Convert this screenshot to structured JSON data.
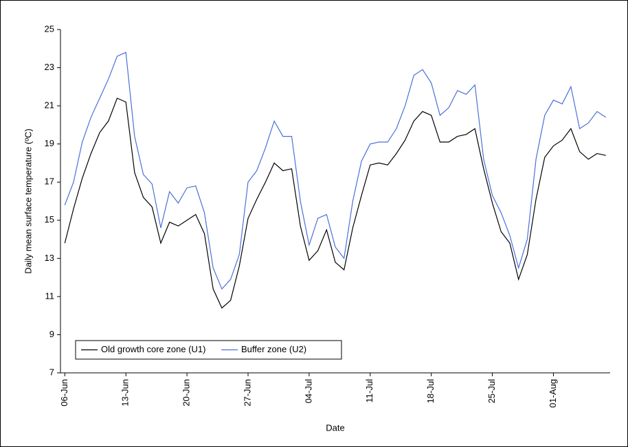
{
  "chart_data": {
    "type": "line",
    "ylabel": "Daily mean surface temperature (ºC)",
    "xlabel": "Date",
    "categories": [
      "06-Jun",
      null,
      null,
      null,
      null,
      null,
      null,
      "13-Jun",
      null,
      null,
      null,
      null,
      null,
      null,
      "20-Jun",
      null,
      null,
      null,
      null,
      null,
      null,
      "27-Jun",
      null,
      null,
      null,
      null,
      null,
      null,
      "04-Jul",
      null,
      null,
      null,
      null,
      null,
      null,
      "11-Jul",
      null,
      null,
      null,
      null,
      null,
      null,
      "18-Jul",
      null,
      null,
      null,
      null,
      null,
      null,
      "25-Jul",
      null,
      null,
      null,
      null,
      null,
      null,
      "01-Aug",
      null,
      null,
      null,
      null,
      null,
      null
    ],
    "series": [
      {
        "name": "Old growth core zone (U1)",
        "color": "#000000",
        "values": [
          13.8,
          15.6,
          17.2,
          18.5,
          19.6,
          20.2,
          21.4,
          21.2,
          17.5,
          16.2,
          15.7,
          13.8,
          14.9,
          14.7,
          15.0,
          15.3,
          14.3,
          11.4,
          10.4,
          10.8,
          12.6,
          15.1,
          16.1,
          17.0,
          18.0,
          17.6,
          17.7,
          14.7,
          12.9,
          13.4,
          14.5,
          12.8,
          12.4,
          14.6,
          16.3,
          17.9,
          18.0,
          17.9,
          18.5,
          19.2,
          20.2,
          20.7,
          20.5,
          19.1,
          19.1,
          19.4,
          19.5,
          19.8,
          17.7,
          15.9,
          14.4,
          13.8,
          11.9,
          13.2,
          16.1,
          18.3,
          18.9,
          19.2,
          19.8,
          18.6,
          18.2,
          18.5,
          18.4
        ]
      },
      {
        "name": "Buffer zone (U2)",
        "color": "#4a6fd8",
        "values": [
          15.8,
          17.0,
          19.1,
          20.4,
          21.4,
          22.4,
          23.6,
          23.8,
          19.4,
          17.4,
          16.9,
          14.6,
          16.5,
          15.9,
          16.7,
          16.8,
          15.4,
          12.5,
          11.4,
          11.9,
          13.2,
          17.0,
          17.6,
          18.8,
          20.2,
          19.4,
          19.4,
          16.0,
          13.7,
          15.1,
          15.3,
          13.6,
          13.0,
          16.0,
          18.1,
          19.0,
          19.1,
          19.1,
          19.8,
          21.0,
          22.6,
          22.9,
          22.2,
          20.5,
          20.9,
          21.8,
          21.6,
          22.1,
          18.2,
          16.3,
          15.4,
          14.2,
          12.5,
          14.0,
          18.2,
          20.5,
          21.3,
          21.1,
          22.0,
          19.8,
          20.1,
          20.7,
          20.4
        ]
      }
    ],
    "ylim": [
      7,
      25
    ],
    "yticks": [
      7,
      9,
      11,
      13,
      15,
      17,
      19,
      21,
      23,
      25
    ],
    "legend": "lower left"
  }
}
